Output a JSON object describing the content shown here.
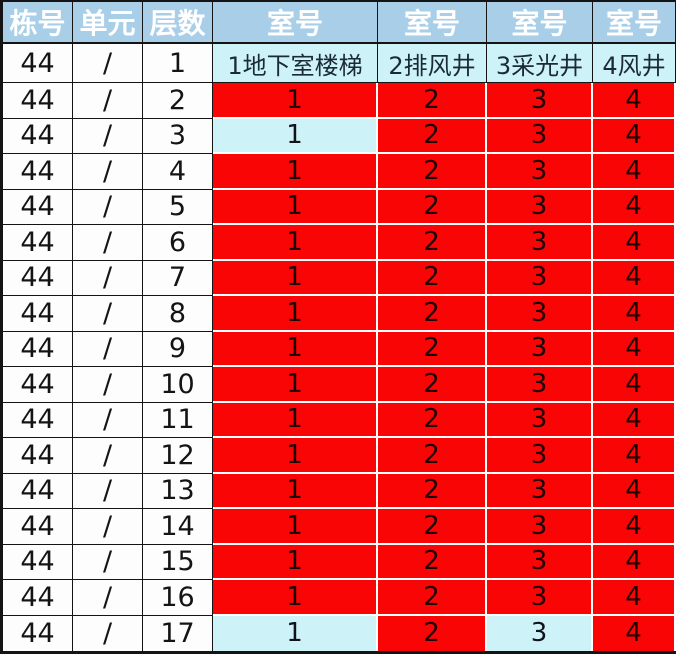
{
  "table": {
    "headers": [
      "栋号",
      "单元",
      "层数",
      "室号",
      "室号",
      "室号",
      "室号"
    ],
    "rows": [
      {
        "building": "44",
        "unit": "/",
        "floor": "1",
        "rooms": [
          {
            "label": "1地下室楼梯",
            "bg": "cyan"
          },
          {
            "label": "2排风井",
            "bg": "cyan"
          },
          {
            "label": "3采光井",
            "bg": "cyan"
          },
          {
            "label": "4风井",
            "bg": "cyan"
          }
        ]
      },
      {
        "building": "44",
        "unit": "/",
        "floor": "2",
        "rooms": [
          {
            "label": "1",
            "bg": "red"
          },
          {
            "label": "2",
            "bg": "red"
          },
          {
            "label": "3",
            "bg": "red"
          },
          {
            "label": "4",
            "bg": "red"
          }
        ]
      },
      {
        "building": "44",
        "unit": "/",
        "floor": "3",
        "rooms": [
          {
            "label": "1",
            "bg": "cyan"
          },
          {
            "label": "2",
            "bg": "red"
          },
          {
            "label": "3",
            "bg": "red"
          },
          {
            "label": "4",
            "bg": "red"
          }
        ]
      },
      {
        "building": "44",
        "unit": "/",
        "floor": "4",
        "rooms": [
          {
            "label": "1",
            "bg": "red"
          },
          {
            "label": "2",
            "bg": "red"
          },
          {
            "label": "3",
            "bg": "red"
          },
          {
            "label": "4",
            "bg": "red"
          }
        ]
      },
      {
        "building": "44",
        "unit": "/",
        "floor": "5",
        "rooms": [
          {
            "label": "1",
            "bg": "red"
          },
          {
            "label": "2",
            "bg": "red"
          },
          {
            "label": "3",
            "bg": "red"
          },
          {
            "label": "4",
            "bg": "red"
          }
        ]
      },
      {
        "building": "44",
        "unit": "/",
        "floor": "6",
        "rooms": [
          {
            "label": "1",
            "bg": "red"
          },
          {
            "label": "2",
            "bg": "red"
          },
          {
            "label": "3",
            "bg": "red"
          },
          {
            "label": "4",
            "bg": "red"
          }
        ]
      },
      {
        "building": "44",
        "unit": "/",
        "floor": "7",
        "rooms": [
          {
            "label": "1",
            "bg": "red"
          },
          {
            "label": "2",
            "bg": "red"
          },
          {
            "label": "3",
            "bg": "red"
          },
          {
            "label": "4",
            "bg": "red"
          }
        ]
      },
      {
        "building": "44",
        "unit": "/",
        "floor": "8",
        "rooms": [
          {
            "label": "1",
            "bg": "red"
          },
          {
            "label": "2",
            "bg": "red"
          },
          {
            "label": "3",
            "bg": "red"
          },
          {
            "label": "4",
            "bg": "red"
          }
        ]
      },
      {
        "building": "44",
        "unit": "/",
        "floor": "9",
        "rooms": [
          {
            "label": "1",
            "bg": "red"
          },
          {
            "label": "2",
            "bg": "red"
          },
          {
            "label": "3",
            "bg": "red"
          },
          {
            "label": "4",
            "bg": "red"
          }
        ]
      },
      {
        "building": "44",
        "unit": "/",
        "floor": "10",
        "rooms": [
          {
            "label": "1",
            "bg": "red"
          },
          {
            "label": "2",
            "bg": "red"
          },
          {
            "label": "3",
            "bg": "red"
          },
          {
            "label": "4",
            "bg": "red"
          }
        ]
      },
      {
        "building": "44",
        "unit": "/",
        "floor": "11",
        "rooms": [
          {
            "label": "1",
            "bg": "red"
          },
          {
            "label": "2",
            "bg": "red"
          },
          {
            "label": "3",
            "bg": "red"
          },
          {
            "label": "4",
            "bg": "red"
          }
        ]
      },
      {
        "building": "44",
        "unit": "/",
        "floor": "12",
        "rooms": [
          {
            "label": "1",
            "bg": "red"
          },
          {
            "label": "2",
            "bg": "red"
          },
          {
            "label": "3",
            "bg": "red"
          },
          {
            "label": "4",
            "bg": "red"
          }
        ]
      },
      {
        "building": "44",
        "unit": "/",
        "floor": "13",
        "rooms": [
          {
            "label": "1",
            "bg": "red"
          },
          {
            "label": "2",
            "bg": "red"
          },
          {
            "label": "3",
            "bg": "red"
          },
          {
            "label": "4",
            "bg": "red"
          }
        ]
      },
      {
        "building": "44",
        "unit": "/",
        "floor": "14",
        "rooms": [
          {
            "label": "1",
            "bg": "red"
          },
          {
            "label": "2",
            "bg": "red"
          },
          {
            "label": "3",
            "bg": "red"
          },
          {
            "label": "4",
            "bg": "red"
          }
        ]
      },
      {
        "building": "44",
        "unit": "/",
        "floor": "15",
        "rooms": [
          {
            "label": "1",
            "bg": "red"
          },
          {
            "label": "2",
            "bg": "red"
          },
          {
            "label": "3",
            "bg": "red"
          },
          {
            "label": "4",
            "bg": "red"
          }
        ]
      },
      {
        "building": "44",
        "unit": "/",
        "floor": "16",
        "rooms": [
          {
            "label": "1",
            "bg": "red"
          },
          {
            "label": "2",
            "bg": "red"
          },
          {
            "label": "3",
            "bg": "red"
          },
          {
            "label": "4",
            "bg": "red"
          }
        ]
      },
      {
        "building": "44",
        "unit": "/",
        "floor": "17",
        "rooms": [
          {
            "label": "1",
            "bg": "cyan"
          },
          {
            "label": "2",
            "bg": "red"
          },
          {
            "label": "3",
            "bg": "cyan"
          },
          {
            "label": "4",
            "bg": "red"
          }
        ]
      }
    ]
  },
  "colors": {
    "header_bg": "#a9cee8",
    "header_text": "#ffffff",
    "room_red": "#f90505",
    "room_cyan": "#cdf3f9",
    "room_red_text": "#1e0202",
    "grid_line": "#141414"
  }
}
